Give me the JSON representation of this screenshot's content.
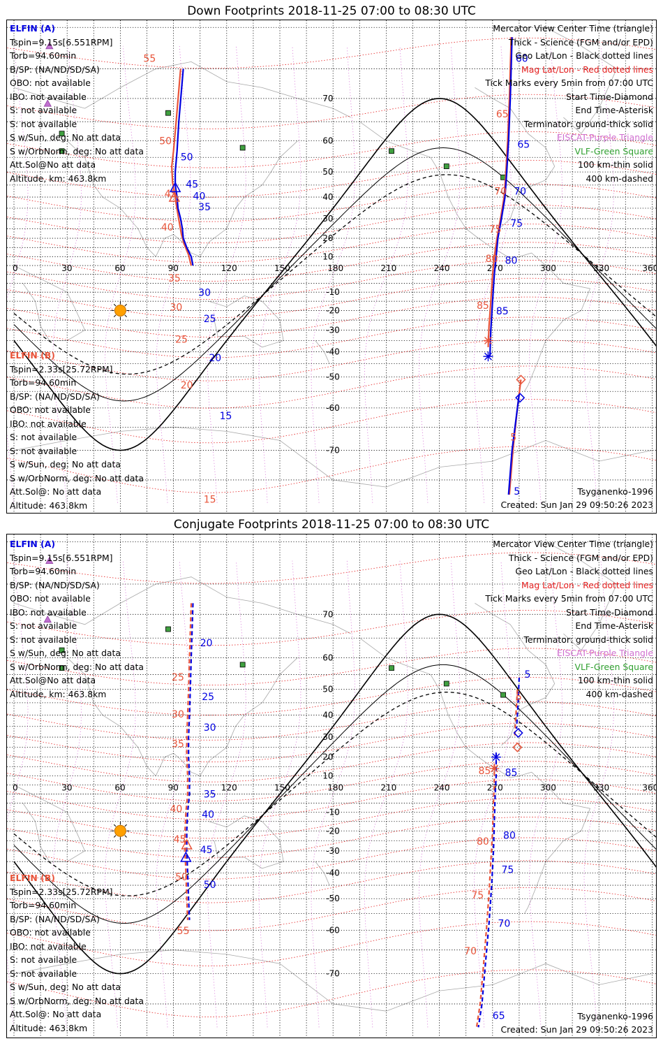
{
  "panels": [
    {
      "title": "Down Footprints 2018-11-25 07:00 to 08:30 UTC",
      "kind": "down",
      "sat_a": {
        "name": "ELFIN (A)",
        "lines": [
          "Tspin=9.15s[6.551RPM]",
          "Torb=94.60min",
          "B/SP: (NA/ND/SD/SA)",
          "OBO: not available",
          "IBO: not available",
          "S: not available",
          "S: not available",
          "S w/Sun, deg: No att data",
          "S w/OrbNorm, deg: No att data",
          "Att.Sol@No att data",
          "Altitude, km: 463.8km"
        ]
      },
      "sat_b": {
        "name": "ELFIN (B)",
        "lines": [
          "Tspin=2.33s[25.72RPM]",
          "Torb=94.60min",
          "B/SP: (NA/ND/SD/SA)",
          "OBO: not available",
          "IBO: not available",
          "S: not available",
          "S: not available",
          "S w/Sun, deg: No att data",
          "S w/OrbNorm, deg: No att data",
          "Att.Sol@: No att data",
          "Altitude: 463.8km"
        ]
      },
      "legend": [
        {
          "text": "Mercator View Center Time (triangle)",
          "color": "#000000"
        },
        {
          "text": "Thick - Science (FGM and/or EPD)",
          "color": "#000000"
        },
        {
          "text": "Geo Lat/Lon - Black dotted lines",
          "color": "#000000"
        },
        {
          "text": "Mag Lat/Lon - Red dotted lines",
          "color": "#e52020"
        },
        {
          "text": "Tick Marks every 5min from 07:00 UTC",
          "color": "#000000"
        },
        {
          "text": "Start Time-Diamond",
          "color": "#000000"
        },
        {
          "text": "End Time-Asterisk",
          "color": "#000000"
        },
        {
          "text": "Terminator: ground-thick solid",
          "color": "#000000"
        },
        {
          "text": "EISCAT-Purple Triangle",
          "color": "#d070d0"
        },
        {
          "text": "VLF-Green Square",
          "color": "#30a030"
        },
        {
          "text": "100 km-thin solid",
          "color": "#000000"
        },
        {
          "text": "400 km-dashed",
          "color": "#000000"
        }
      ],
      "model": "Tsyganenko-1996",
      "created": "Created: Sun Jan 29 09:50:26 2023",
      "track_a": [
        [
          95.5,
          75
        ],
        [
          93,
          65
        ],
        [
          92,
          57
        ],
        [
          91,
          50
        ],
        [
          91,
          45
        ],
        [
          92,
          40
        ],
        [
          92.5,
          35
        ],
        [
          94,
          30
        ],
        [
          95,
          25
        ],
        [
          95.5,
          20
        ],
        [
          97.5,
          15
        ],
        [
          100,
          10
        ],
        [
          101,
          5
        ]
      ],
      "track_b": [
        [
          94,
          75
        ],
        [
          91.5,
          65
        ],
        [
          90,
          57
        ],
        [
          89,
          52
        ],
        [
          89.5,
          46
        ],
        [
          90.5,
          42
        ],
        [
          91.5,
          37
        ],
        [
          92.5,
          32
        ],
        [
          93.5,
          27
        ],
        [
          94.5,
          22
        ],
        [
          96,
          17
        ],
        [
          98.5,
          11
        ],
        [
          100,
          5
        ]
      ],
      "track_a2": [
        [
          268.5,
          -42
        ],
        [
          269,
          -30
        ],
        [
          270,
          -15
        ],
        [
          271,
          0
        ],
        [
          272,
          10
        ],
        [
          273,
          20
        ],
        [
          275,
          30
        ],
        [
          277,
          40
        ],
        [
          278,
          50
        ],
        [
          279,
          60
        ],
        [
          280,
          70
        ],
        [
          281,
          79
        ]
      ],
      "track_b2": [
        [
          267.5,
          -38
        ],
        [
          268,
          -28
        ],
        [
          269,
          -15
        ],
        [
          270,
          0
        ],
        [
          271,
          10
        ],
        [
          272.5,
          20
        ],
        [
          274.5,
          30
        ],
        [
          276.5,
          40
        ],
        [
          277.5,
          50
        ],
        [
          278.5,
          60
        ],
        [
          279.5,
          70
        ],
        [
          280.5,
          79
        ]
      ],
      "track_a3": [
        [
          285,
          -56
        ],
        [
          283.5,
          -62
        ],
        [
          281,
          -70
        ],
        [
          279,
          -77
        ]
      ],
      "track_b3": [
        [
          286,
          -51
        ],
        [
          284,
          -60
        ],
        [
          281.5,
          -70
        ],
        [
          279.5,
          -77
        ]
      ],
      "labels_a": [
        {
          "t": "50",
          "lon": 94,
          "lat": 54
        },
        {
          "t": "45",
          "lon": 97,
          "lat": 44
        },
        {
          "t": "40",
          "lon": 101,
          "lat": 39
        },
        {
          "t": "35",
          "lon": 104,
          "lat": 34
        },
        {
          "t": "30",
          "lon": 104,
          "lat": -12
        },
        {
          "t": "25",
          "lon": 107,
          "lat": -26
        },
        {
          "t": "20",
          "lon": 110,
          "lat": -44
        },
        {
          "t": "15",
          "lon": 116,
          "lat": -63
        },
        {
          "t": "60",
          "lon": 283,
          "lat": 76
        },
        {
          "t": "65",
          "lon": 284,
          "lat": 58
        },
        {
          "t": "70",
          "lon": 282,
          "lat": 41
        },
        {
          "t": "75",
          "lon": 280,
          "lat": 26
        },
        {
          "t": "80",
          "lon": 277,
          "lat": 6
        },
        {
          "t": "85",
          "lon": 272,
          "lat": -22
        },
        {
          "t": "5",
          "lon": 282,
          "lat": -77
        }
      ],
      "labels_b": [
        {
          "t": "55",
          "lon": 73,
          "lat": 76
        },
        {
          "t": "50",
          "lon": 82,
          "lat": 59
        },
        {
          "t": "45",
          "lon": 85,
          "lat": 40
        },
        {
          "t": "40",
          "lon": 83,
          "lat": 24
        },
        {
          "t": "35",
          "lon": 87,
          "lat": -4
        },
        {
          "t": "30",
          "lon": 88,
          "lat": -20
        },
        {
          "t": "25",
          "lon": 91,
          "lat": -36
        },
        {
          "t": "20",
          "lon": 94,
          "lat": -54
        },
        {
          "t": "15",
          "lon": 107,
          "lat": -78
        },
        {
          "t": "65",
          "lon": 272,
          "lat": 66
        },
        {
          "t": "70",
          "lon": 271,
          "lat": 41
        },
        {
          "t": "75",
          "lon": 268,
          "lat": 23
        },
        {
          "t": "80",
          "lon": 266,
          "lat": 7
        },
        {
          "t": "85",
          "lon": 261,
          "lat": -19
        },
        {
          "t": "5",
          "lon": 280,
          "lat": -68
        }
      ],
      "center_a": [
        91,
        44
      ],
      "center_b": [
        90.5,
        40
      ],
      "end_a": [
        267.5,
        -42
      ],
      "end_b": [
        267.5,
        -35
      ],
      "start_a": [
        285.5,
        -57
      ],
      "start_b": [
        286,
        -51
      ]
    },
    {
      "title": "Conjugate Footprints 2018-11-25 07:00 to 08:30 UTC",
      "kind": "conj",
      "sat_a": {
        "name": "ELFIN (A)",
        "lines": [
          "Tspin=9.15s[6.551RPM]",
          "Torb=94.60min",
          "B/SP: (NA/ND/SD/SA)",
          "OBO: not available",
          "IBO: not available",
          "S: not available",
          "S: not available",
          "S w/Sun, deg: No att data",
          "S w/OrbNorm, deg: No att data",
          "Att.Sol@No att data",
          "Altitude, km: 463.8km"
        ]
      },
      "sat_b": {
        "name": "ELFIN (B)",
        "lines": [
          "Tspin=2.33s[25.72RPM]",
          "Torb=94.60min",
          "B/SP: (NA/ND/SD/SA)",
          "OBO: not available",
          "IBO: not available",
          "S: not available",
          "S: not available",
          "S w/Sun, deg: No att data",
          "S w/OrbNorm, deg: No att data",
          "Att.Sol@: No att data",
          "Altitude: 463.8km"
        ]
      },
      "legend": [
        {
          "text": "Mercator View Center Time (triangle)",
          "color": "#000000"
        },
        {
          "text": "Thick - Science (FGM and/or EPD)",
          "color": "#000000"
        },
        {
          "text": "Geo Lat/Lon - Black dotted lines",
          "color": "#000000"
        },
        {
          "text": "Mag Lat/Lon - Red dotted lines",
          "color": "#e52020"
        },
        {
          "text": "Tick Marks every 5min from 07:00 UTC",
          "color": "#000000"
        },
        {
          "text": "Start Time-Diamond",
          "color": "#000000"
        },
        {
          "text": "End Time-Asterisk",
          "color": "#000000"
        },
        {
          "text": "Terminator: ground-thick solid",
          "color": "#000000"
        },
        {
          "text": "EISCAT-Purple Triangle",
          "color": "#d070d0"
        },
        {
          "text": "VLF-Green Square",
          "color": "#30a030"
        },
        {
          "text": "100 km-thin solid",
          "color": "#000000"
        },
        {
          "text": "400 km-dashed",
          "color": "#000000"
        }
      ],
      "model": "Tsyganenko-1996",
      "created": "Created: Sun Jan 29 09:50:26 2023",
      "track_a": [
        [
          101,
          72
        ],
        [
          100,
          60
        ],
        [
          99.5,
          50
        ],
        [
          99,
          40
        ],
        [
          98.5,
          30
        ],
        [
          98.5,
          20
        ],
        [
          99,
          10
        ],
        [
          99,
          0
        ],
        [
          98,
          -10
        ],
        [
          97.5,
          -20
        ],
        [
          97.5,
          -30
        ],
        [
          98,
          -40
        ],
        [
          98.5,
          -50
        ],
        [
          99,
          -57
        ]
      ],
      "track_b": [
        [
          100,
          72
        ],
        [
          99,
          60
        ],
        [
          98.5,
          50
        ],
        [
          98,
          40
        ],
        [
          97.5,
          30
        ],
        [
          97.5,
          20
        ],
        [
          98,
          10
        ],
        [
          98,
          0
        ],
        [
          97,
          -10
        ],
        [
          96.5,
          -20
        ],
        [
          96.5,
          -30
        ],
        [
          97,
          -40
        ],
        [
          97.5,
          -50
        ],
        [
          98,
          -57
        ]
      ],
      "track_a2": [
        [
          272,
          22
        ],
        [
          272,
          10
        ],
        [
          271.5,
          0
        ],
        [
          271,
          -15
        ],
        [
          270.5,
          -30
        ],
        [
          269.5,
          -45
        ],
        [
          268,
          -58
        ],
        [
          266,
          -68
        ],
        [
          264,
          -75
        ],
        [
          262,
          -78
        ]
      ],
      "track_b2": [
        [
          271,
          16
        ],
        [
          271,
          5
        ],
        [
          270.5,
          -5
        ],
        [
          270,
          -20
        ],
        [
          269,
          -35
        ],
        [
          268,
          -48
        ],
        [
          266.5,
          -60
        ],
        [
          264.5,
          -70
        ],
        [
          263,
          -75
        ],
        [
          261,
          -78
        ]
      ],
      "track_a3": [
        [
          285,
          54
        ],
        [
          284.5,
          46
        ],
        [
          284,
          40
        ],
        [
          283.5,
          34
        ]
      ],
      "track_b3": [
        [
          284,
          50
        ],
        [
          283.5,
          44
        ],
        [
          283,
          38
        ],
        [
          282.5,
          30
        ]
      ],
      "labels_a": [
        {
          "t": "20",
          "lon": 105,
          "lat": 63
        },
        {
          "t": "25",
          "lon": 106,
          "lat": 46
        },
        {
          "t": "30",
          "lon": 107,
          "lat": 33
        },
        {
          "t": "35",
          "lon": 107,
          "lat": -2
        },
        {
          "t": "40",
          "lon": 106,
          "lat": -13
        },
        {
          "t": "45",
          "lon": 105,
          "lat": -31
        },
        {
          "t": "50",
          "lon": 107,
          "lat": -46
        },
        {
          "t": "85",
          "lon": 277,
          "lat": 10
        },
        {
          "t": "80",
          "lon": 276,
          "lat": -24
        },
        {
          "t": "75",
          "lon": 275,
          "lat": -40
        },
        {
          "t": "70",
          "lon": 273,
          "lat": -59
        },
        {
          "t": "65",
          "lon": 270,
          "lat": -77
        },
        {
          "t": "5",
          "lon": 288,
          "lat": 54
        }
      ],
      "labels_b": [
        {
          "t": "25",
          "lon": 89,
          "lat": 53
        },
        {
          "t": "30",
          "lon": 89,
          "lat": 39
        },
        {
          "t": "35",
          "lon": 89,
          "lat": 25
        },
        {
          "t": "40",
          "lon": 88,
          "lat": -10
        },
        {
          "t": "45",
          "lon": 90,
          "lat": -26
        },
        {
          "t": "50",
          "lon": 91,
          "lat": -43
        },
        {
          "t": "55",
          "lon": 92,
          "lat": -61
        },
        {
          "t": "85",
          "lon": 262,
          "lat": 11
        },
        {
          "t": "80",
          "lon": 261,
          "lat": -27
        },
        {
          "t": "75",
          "lon": 258,
          "lat": -50
        },
        {
          "t": "70",
          "lon": 254,
          "lat": -66
        },
        {
          "t": "5",
          "lon": 283,
          "lat": 46
        }
      ],
      "center_a": [
        97,
        -33
      ],
      "center_b": [
        97.5,
        -27
      ],
      "end_a": [
        272,
        20
      ],
      "end_b": [
        271,
        14
      ],
      "start_a": [
        284.5,
        32
      ],
      "start_b": [
        284,
        25
      ]
    }
  ],
  "axes": {
    "lon_ticks": [
      "0",
      "30",
      "60",
      "90",
      "120",
      "150",
      "180",
      "210",
      "240",
      "270",
      "300",
      "330",
      "360"
    ],
    "lat_ticks": [
      "70",
      "60",
      "50",
      "40",
      "30",
      "20",
      "10",
      "-10",
      "-20",
      "-30",
      "-40",
      "-50",
      "-60",
      "-70"
    ]
  },
  "colors": {
    "sat_a": "#0000e0",
    "sat_b": "#e8543a",
    "mag_grid": "#e52020",
    "geo_grid": "#000000",
    "coast": "#a8a8a8",
    "eiscat": "#c070d0",
    "vlf": "#40a040",
    "sun": "#ffa000"
  }
}
